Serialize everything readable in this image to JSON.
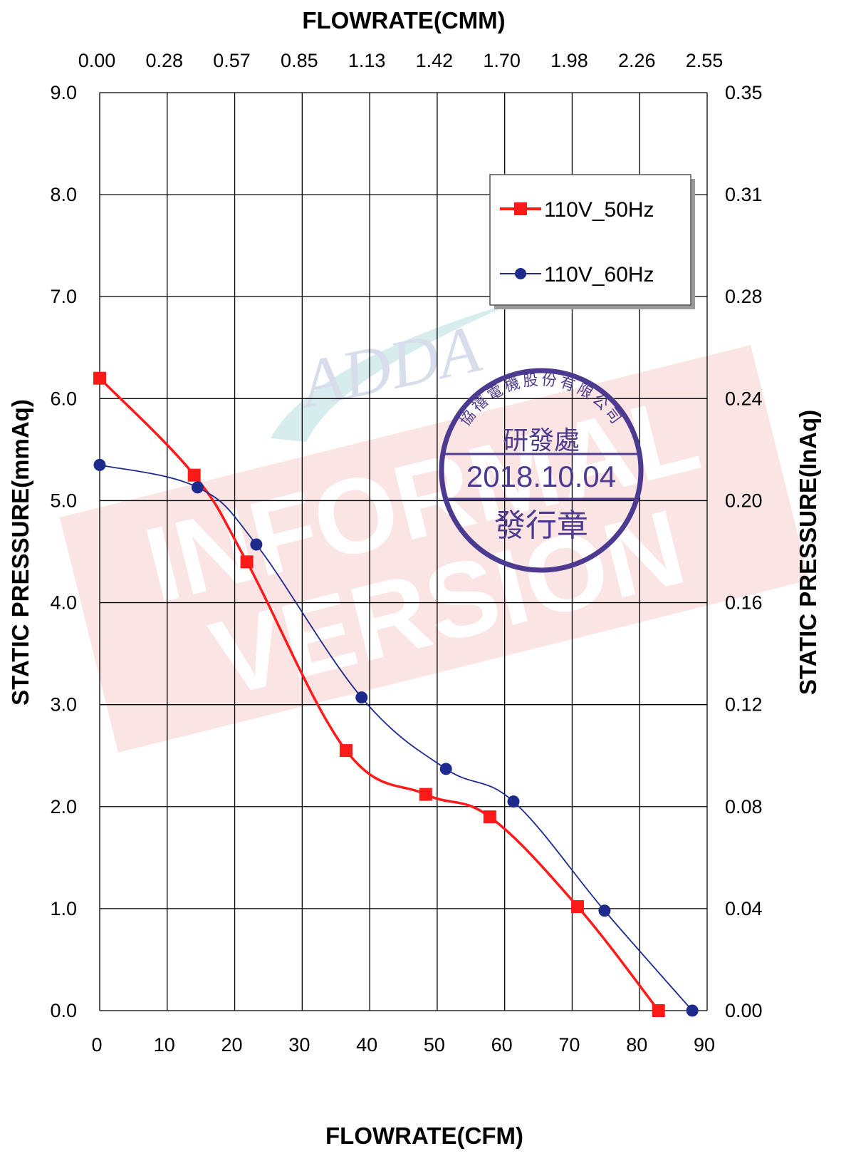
{
  "chart_data": {
    "type": "line",
    "top_title": "FLOWRATE(CMM)",
    "xlabel": "FLOWRATE(CFM)",
    "ylabel_left": "STATIC PRESSURE(mmAq)",
    "ylabel_right": "STATIC PRESSURE(InAq)",
    "xlim": [
      0,
      90
    ],
    "ylim": [
      0,
      9
    ],
    "x_ticks": [
      "0",
      "10",
      "20",
      "30",
      "40",
      "50",
      "60",
      "70",
      "80",
      "90"
    ],
    "x_ticks_top": [
      "0.00",
      "0.28",
      "0.57",
      "0.85",
      "1.13",
      "1.42",
      "1.70",
      "1.98",
      "2.26",
      "2.55"
    ],
    "y_ticks_left": [
      "0.0",
      "1.0",
      "2.0",
      "3.0",
      "4.0",
      "5.0",
      "6.0",
      "7.0",
      "8.0",
      "9.0"
    ],
    "y_ticks_right": [
      "0.00",
      "0.04",
      "0.08",
      "0.12",
      "0.16",
      "0.20",
      "0.24",
      "0.28",
      "0.31",
      "0.35"
    ],
    "grid": true,
    "legend_position": "top-right",
    "series": [
      {
        "name": "110V_50Hz",
        "color": "#ff1a1a",
        "marker": "square",
        "x": [
          0.0,
          14.0,
          21.8,
          36.5,
          48.3,
          57.8,
          70.8,
          82.8
        ],
        "y": [
          6.2,
          5.25,
          4.4,
          2.55,
          2.12,
          1.9,
          1.02,
          0.0
        ]
      },
      {
        "name": "110V_60Hz",
        "color": "#1e2a8c",
        "marker": "circle",
        "x": [
          0.0,
          14.5,
          23.2,
          38.8,
          51.3,
          61.3,
          74.8,
          87.8
        ],
        "y": [
          5.35,
          5.13,
          4.57,
          3.07,
          2.37,
          2.05,
          0.98,
          0.0
        ]
      }
    ]
  },
  "watermark": {
    "stamp_company": "協禧電機股份有限公司",
    "stamp_dept": "研發處",
    "stamp_date": "2018.10.04",
    "stamp_issue": "發行章",
    "stamp_color": "#4b3a8f",
    "banner_line1": "INFORMAL",
    "banner_line2": "VERSION",
    "banner_color": "#f3b3b3",
    "logo_text": "ADDA"
  }
}
